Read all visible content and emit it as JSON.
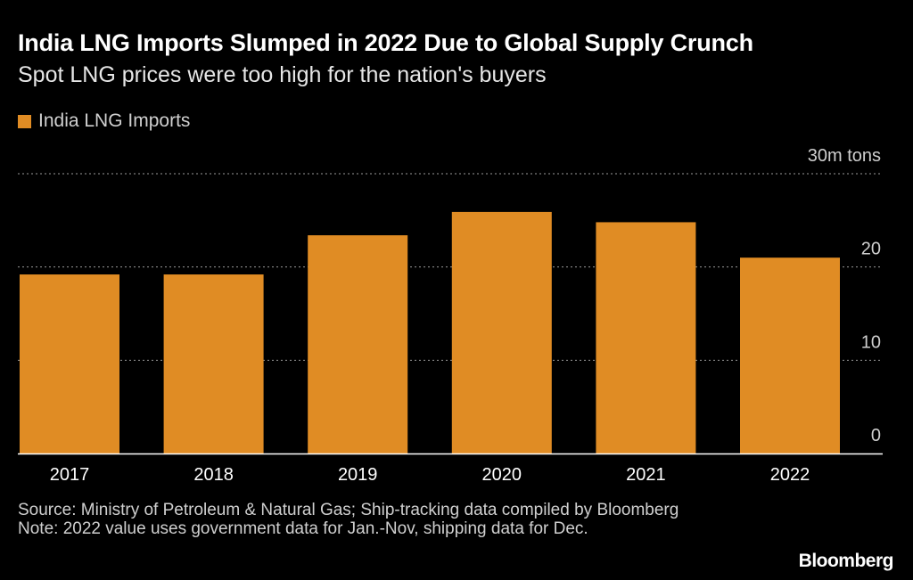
{
  "title": "India LNG Imports Slumped in 2022 Due to Global Supply Crunch",
  "subtitle": "Spot LNG prices were too high for the nation's buyers",
  "legend_label": "India LNG Imports",
  "colors": {
    "bar": "#e08c24",
    "background": "#000000",
    "grid": "#9a9a9a",
    "text": "#ffffff"
  },
  "chart_data": {
    "type": "bar",
    "title": "India LNG Imports Slumped in 2022 Due to Global Supply Crunch",
    "subtitle": "Spot LNG prices were too high for the nation's buyers",
    "categories": [
      "2017",
      "2018",
      "2019",
      "2020",
      "2021",
      "2022"
    ],
    "series": [
      {
        "name": "India LNG Imports",
        "values": [
          19.2,
          19.2,
          23.4,
          25.9,
          24.8,
          21.0
        ]
      }
    ],
    "ylim": [
      0,
      30
    ],
    "yticks": [
      {
        "value": 30,
        "label": "30m tons"
      },
      {
        "value": 20,
        "label": "20"
      },
      {
        "value": 10,
        "label": "10"
      },
      {
        "value": 0,
        "label": "0"
      }
    ],
    "xlabel": "",
    "ylabel": "",
    "grid": true,
    "legend_position": "top-left"
  },
  "footer": {
    "source": "Source: Ministry of Petroleum & Natural Gas; Ship-tracking data compiled by Bloomberg",
    "note": "Note: 2022 value uses government data for Jan.-Nov, shipping data for Dec."
  },
  "brand": "Bloomberg"
}
